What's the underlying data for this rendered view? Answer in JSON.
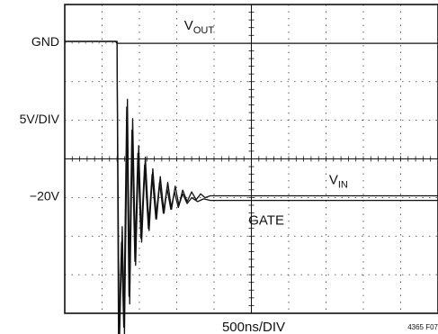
{
  "chart_data": {
    "type": "line",
    "title": "",
    "xlabel": "500ns/DIV",
    "ylabel": "",
    "figure_id": "4365 F07",
    "x_units": "ns",
    "x_div": 500,
    "x_divisions": 10,
    "xlim": [
      0,
      5000
    ],
    "y_divisions": 8,
    "ylim_divisions": [
      0,
      8
    ],
    "grid": true,
    "y_tick_labels": [
      {
        "text": "GND",
        "div": 0
      },
      {
        "text": "5V/DIV",
        "div": 2
      },
      {
        "text": "−20V",
        "div": 4
      }
    ],
    "series": [
      {
        "name": "V_OUT",
        "label_main": "V",
        "label_sub": "OUT",
        "points": [
          [
            0,
            0
          ],
          [
            680,
            0
          ],
          [
            700,
            0.05
          ],
          [
            5000,
            0.05
          ]
        ]
      },
      {
        "name": "V_IN",
        "label_main": "V",
        "label_sub": "IN",
        "points": [
          [
            0,
            0
          ],
          [
            700,
            0
          ],
          [
            730,
            8
          ],
          [
            770,
            4.8
          ],
          [
            800,
            7.6
          ],
          [
            840,
            1.5
          ],
          [
            870,
            6.8
          ],
          [
            910,
            2.0
          ],
          [
            950,
            5.8
          ],
          [
            990,
            2.7
          ],
          [
            1030,
            5.2
          ],
          [
            1080,
            3.0
          ],
          [
            1130,
            4.9
          ],
          [
            1180,
            3.3
          ],
          [
            1230,
            4.6
          ],
          [
            1280,
            3.5
          ],
          [
            1330,
            4.45
          ],
          [
            1380,
            3.65
          ],
          [
            1430,
            4.35
          ],
          [
            1480,
            3.75
          ],
          [
            1530,
            4.25
          ],
          [
            1580,
            3.85
          ],
          [
            1640,
            4.15
          ],
          [
            1700,
            3.9
          ],
          [
            1760,
            4.1
          ],
          [
            1820,
            3.95
          ],
          [
            1880,
            4.05
          ],
          [
            1950,
            4.0
          ],
          [
            5000,
            4.0
          ]
        ]
      },
      {
        "name": "GATE",
        "label_main": "GATE",
        "label_sub": "",
        "points": [
          [
            0,
            0
          ],
          [
            700,
            0
          ],
          [
            720,
            8
          ],
          [
            760,
            5.2
          ],
          [
            790,
            7.4
          ],
          [
            830,
            1.7
          ],
          [
            860,
            6.6
          ],
          [
            900,
            2.3
          ],
          [
            940,
            5.7
          ],
          [
            980,
            2.9
          ],
          [
            1020,
            5.1
          ],
          [
            1070,
            3.2
          ],
          [
            1120,
            4.85
          ],
          [
            1170,
            3.45
          ],
          [
            1220,
            4.6
          ],
          [
            1270,
            3.65
          ],
          [
            1320,
            4.45
          ],
          [
            1370,
            3.8
          ],
          [
            1420,
            4.35
          ],
          [
            1470,
            3.9
          ],
          [
            1520,
            4.3
          ],
          [
            1580,
            3.95
          ],
          [
            1640,
            4.2
          ],
          [
            1700,
            4.05
          ],
          [
            1780,
            4.15
          ],
          [
            1860,
            4.08
          ],
          [
            1950,
            4.12
          ],
          [
            5000,
            4.12
          ]
        ]
      }
    ]
  }
}
